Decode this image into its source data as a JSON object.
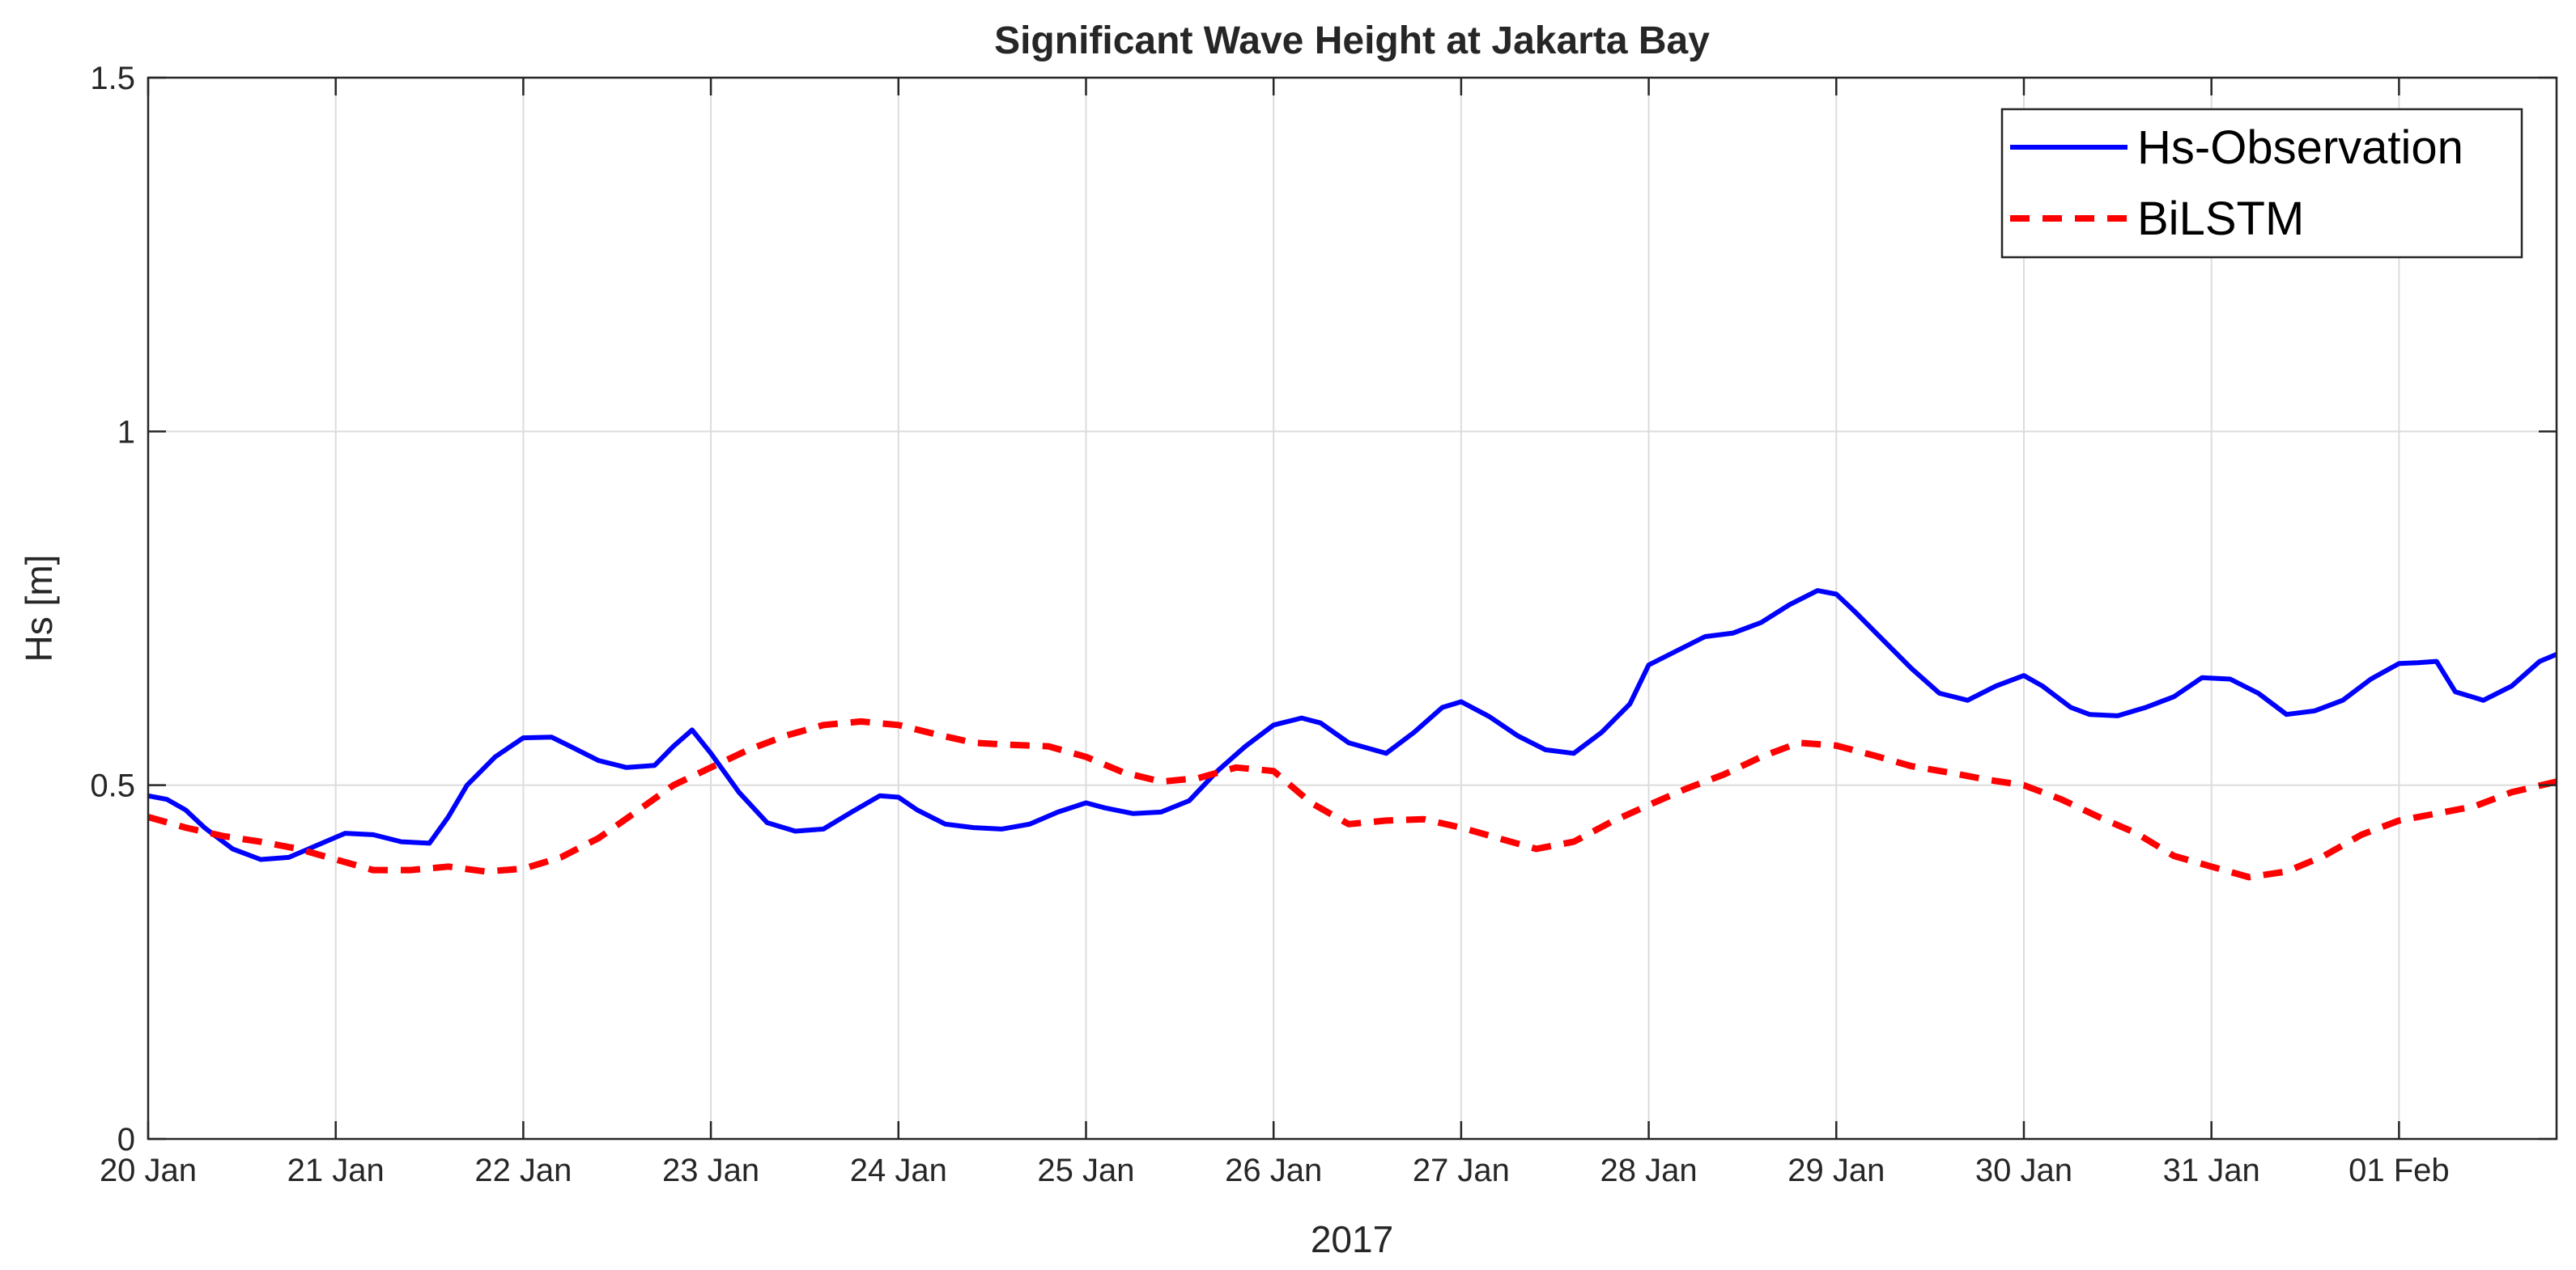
{
  "chart_data": {
    "type": "line",
    "title": "Significant Wave Height at Jakarta Bay",
    "xlabel": "2017",
    "ylabel": "Hs [m]",
    "xlim": [
      0,
      12.84
    ],
    "ylim": [
      0,
      1.5
    ],
    "grid": true,
    "legend_position": "top-right",
    "x_ticks": [
      0,
      1,
      2,
      3,
      4,
      5,
      6,
      7,
      8,
      9,
      10,
      11,
      12
    ],
    "x_tick_labels": [
      "20 Jan",
      "21 Jan",
      "22 Jan",
      "23 Jan",
      "24 Jan",
      "25 Jan",
      "26 Jan",
      "27 Jan",
      "28 Jan",
      "29 Jan",
      "30 Jan",
      "31 Jan",
      "01 Feb"
    ],
    "y_ticks": [
      0,
      0.5,
      1,
      1.5
    ],
    "y_tick_labels": [
      "0",
      "0.5",
      "1",
      "1.5"
    ],
    "series": [
      {
        "name": "Hs-Observation",
        "color": "#0000ff",
        "style": "solid",
        "x": [
          0,
          0.1,
          0.2,
          0.3,
          0.45,
          0.6,
          0.75,
          0.9,
          1.05,
          1.2,
          1.35,
          1.5,
          1.6,
          1.7,
          1.85,
          2.0,
          2.15,
          2.25,
          2.4,
          2.55,
          2.7,
          2.8,
          2.9,
          3.0,
          3.15,
          3.3,
          3.45,
          3.6,
          3.75,
          3.9,
          4.0,
          4.1,
          4.25,
          4.4,
          4.55,
          4.7,
          4.85,
          5.0,
          5.1,
          5.25,
          5.4,
          5.55,
          5.7,
          5.85,
          6.0,
          6.15,
          6.25,
          6.4,
          6.6,
          6.75,
          6.9,
          7.0,
          7.15,
          7.3,
          7.45,
          7.6,
          7.75,
          7.9,
          8.0,
          8.15,
          8.3,
          8.45,
          8.6,
          8.75,
          8.9,
          9.0,
          9.1,
          9.25,
          9.4,
          9.55,
          9.7,
          9.85,
          10.0,
          10.1,
          10.25,
          10.35,
          10.5,
          10.65,
          10.8,
          10.95,
          11.1,
          11.25,
          11.4,
          11.55,
          11.7,
          11.85,
          12.0,
          12.1,
          12.2,
          12.3,
          12.45,
          12.6,
          12.75,
          12.84
        ],
        "values": [
          0.485,
          0.48,
          0.465,
          0.44,
          0.41,
          0.395,
          0.398,
          0.415,
          0.432,
          0.43,
          0.42,
          0.418,
          0.455,
          0.5,
          0.54,
          0.567,
          0.568,
          0.555,
          0.535,
          0.525,
          0.528,
          0.555,
          0.578,
          0.545,
          0.49,
          0.447,
          0.435,
          0.438,
          0.462,
          0.485,
          0.483,
          0.465,
          0.445,
          0.44,
          0.438,
          0.445,
          0.462,
          0.475,
          0.468,
          0.46,
          0.462,
          0.478,
          0.52,
          0.555,
          0.585,
          0.595,
          0.588,
          0.56,
          0.545,
          0.575,
          0.61,
          0.618,
          0.597,
          0.57,
          0.55,
          0.545,
          0.575,
          0.615,
          0.67,
          0.69,
          0.71,
          0.715,
          0.73,
          0.755,
          0.775,
          0.77,
          0.745,
          0.705,
          0.665,
          0.63,
          0.62,
          0.64,
          0.655,
          0.64,
          0.61,
          0.6,
          0.598,
          0.61,
          0.625,
          0.652,
          0.65,
          0.63,
          0.6,
          0.605,
          0.62,
          0.65,
          0.672,
          0.673,
          0.675,
          0.632,
          0.62,
          0.64,
          0.675,
          0.685
        ]
      },
      {
        "name": "BiLSTM",
        "color": "#ff0000",
        "style": "dashed",
        "x": [
          0,
          0.2,
          0.4,
          0.6,
          0.8,
          1.0,
          1.2,
          1.4,
          1.6,
          1.8,
          2.0,
          2.2,
          2.4,
          2.6,
          2.8,
          3.0,
          3.2,
          3.4,
          3.6,
          3.8,
          4.0,
          4.2,
          4.4,
          4.6,
          4.8,
          5.0,
          5.2,
          5.4,
          5.6,
          5.8,
          6.0,
          6.2,
          6.4,
          6.6,
          6.8,
          7.0,
          7.2,
          7.4,
          7.6,
          7.8,
          8.0,
          8.2,
          8.4,
          8.6,
          8.8,
          9.0,
          9.2,
          9.4,
          9.6,
          9.8,
          10.0,
          10.2,
          10.4,
          10.6,
          10.8,
          11.0,
          11.2,
          11.4,
          11.6,
          11.8,
          12.0,
          12.2,
          12.4,
          12.6,
          12.84
        ],
        "values": [
          0.455,
          0.44,
          0.428,
          0.42,
          0.41,
          0.395,
          0.38,
          0.38,
          0.385,
          0.378,
          0.382,
          0.398,
          0.425,
          0.462,
          0.5,
          0.525,
          0.55,
          0.57,
          0.585,
          0.59,
          0.585,
          0.572,
          0.56,
          0.557,
          0.555,
          0.54,
          0.518,
          0.505,
          0.51,
          0.525,
          0.52,
          0.475,
          0.445,
          0.45,
          0.452,
          0.44,
          0.425,
          0.41,
          0.42,
          0.448,
          0.472,
          0.495,
          0.515,
          0.54,
          0.56,
          0.556,
          0.542,
          0.527,
          0.518,
          0.508,
          0.5,
          0.48,
          0.455,
          0.432,
          0.4,
          0.385,
          0.37,
          0.378,
          0.4,
          0.43,
          0.45,
          0.46,
          0.47,
          0.49,
          0.505
        ]
      }
    ]
  }
}
